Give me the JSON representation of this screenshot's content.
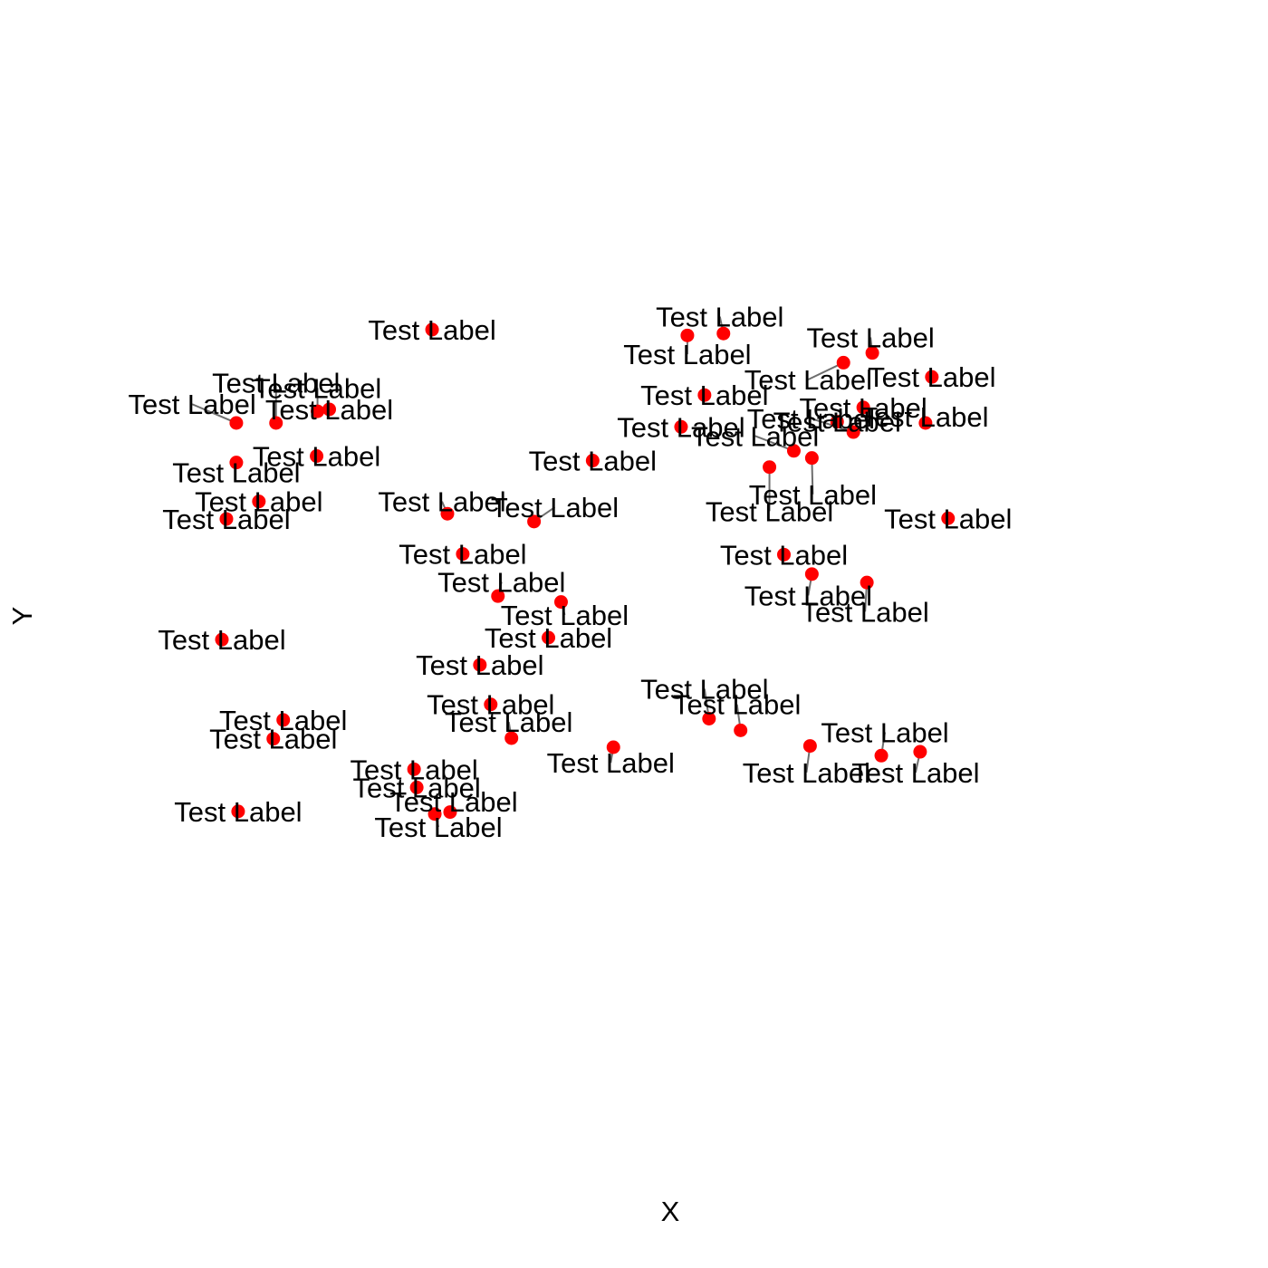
{
  "chart_data": {
    "type": "scatter",
    "xlabel": "X",
    "ylabel": "Y",
    "xlim": [
      0,
      1
    ],
    "ylim": [
      0,
      1
    ],
    "grid": false,
    "legend": "none",
    "colors": {
      "point": "#ff0000",
      "segment": "#6e6e6e",
      "text": "#000000"
    },
    "points": [
      {
        "x": 0.236,
        "y": 0.894,
        "label": "Test Label",
        "lx": 0.236,
        "ly": 0.894
      },
      {
        "x": 0.519,
        "y": 0.885,
        "label": "Test Label",
        "lx": 0.519,
        "ly": 0.856
      },
      {
        "x": 0.559,
        "y": 0.888,
        "label": "Test Label",
        "lx": 0.555,
        "ly": 0.914
      },
      {
        "x": 0.724,
        "y": 0.858,
        "label": "Test Label",
        "lx": 0.722,
        "ly": 0.882
      },
      {
        "x": 0.692,
        "y": 0.843,
        "label": "Test Label",
        "lx": 0.653,
        "ly": 0.817
      },
      {
        "x": 0.79,
        "y": 0.821,
        "label": "Test Label",
        "lx": 0.79,
        "ly": 0.821
      },
      {
        "x": 0.538,
        "y": 0.793,
        "label": "Test Label",
        "lx": 0.538,
        "ly": 0.793
      },
      {
        "x": 0.714,
        "y": 0.774,
        "label": "Test Label",
        "lx": 0.714,
        "ly": 0.774
      },
      {
        "x": 0.685,
        "y": 0.752,
        "label": "Test Label",
        "lx": 0.685,
        "ly": 0.752
      },
      {
        "x": 0.512,
        "y": 0.744,
        "label": "Test Label",
        "lx": 0.512,
        "ly": 0.744
      },
      {
        "x": 0.122,
        "y": 0.771,
        "label": "Test Label",
        "lx": 0.122,
        "ly": 0.771
      },
      {
        "x": 0.109,
        "y": 0.768,
        "label": "Test Label",
        "lx": 0.109,
        "ly": 0.804
      },
      {
        "x": 0.063,
        "y": 0.75,
        "label": "Test Label",
        "lx": 0.063,
        "ly": 0.812
      },
      {
        "x": 0.019,
        "y": 0.75,
        "label": "Test Label",
        "lx": -0.03,
        "ly": 0.779
      },
      {
        "x": 0.703,
        "y": 0.736,
        "label": "Test Label",
        "lx": 0.656,
        "ly": 0.757
      },
      {
        "x": 0.783,
        "y": 0.75,
        "label": "Test Label",
        "lx": 0.782,
        "ly": 0.76
      },
      {
        "x": 0.637,
        "y": 0.707,
        "label": "Test Label",
        "lx": 0.594,
        "ly": 0.73
      },
      {
        "x": 0.108,
        "y": 0.699,
        "label": "Test Label",
        "lx": 0.108,
        "ly": 0.699
      },
      {
        "x": 0.019,
        "y": 0.689,
        "label": "Test Label",
        "lx": 0.019,
        "ly": 0.674
      },
      {
        "x": 0.414,
        "y": 0.692,
        "label": "Test Label",
        "lx": 0.414,
        "ly": 0.692
      },
      {
        "x": 0.657,
        "y": 0.696,
        "label": "Test Label",
        "lx": 0.658,
        "ly": 0.64
      },
      {
        "x": 0.61,
        "y": 0.682,
        "label": "Test Label",
        "lx": 0.61,
        "ly": 0.614
      },
      {
        "x": 0.044,
        "y": 0.629,
        "label": "Test Label",
        "lx": 0.044,
        "ly": 0.629
      },
      {
        "x": 0.008,
        "y": 0.602,
        "label": "Test Label",
        "lx": 0.008,
        "ly": 0.602
      },
      {
        "x": 0.253,
        "y": 0.61,
        "label": "Test Label",
        "lx": 0.247,
        "ly": 0.629
      },
      {
        "x": 0.349,
        "y": 0.598,
        "label": "Test Label",
        "lx": 0.372,
        "ly": 0.62
      },
      {
        "x": 0.27,
        "y": 0.548,
        "label": "Test Label",
        "lx": 0.27,
        "ly": 0.548
      },
      {
        "x": 0.808,
        "y": 0.603,
        "label": "Test Label",
        "lx": 0.808,
        "ly": 0.603
      },
      {
        "x": 0.626,
        "y": 0.547,
        "label": "Test Label",
        "lx": 0.626,
        "ly": 0.547
      },
      {
        "x": 0.657,
        "y": 0.517,
        "label": "Test Label",
        "lx": 0.653,
        "ly": 0.484
      },
      {
        "x": 0.718,
        "y": 0.504,
        "label": "Test Label",
        "lx": 0.716,
        "ly": 0.459
      },
      {
        "x": 0.309,
        "y": 0.483,
        "label": "Test Label",
        "lx": 0.313,
        "ly": 0.505
      },
      {
        "x": 0.379,
        "y": 0.474,
        "label": "Test Label",
        "lx": 0.383,
        "ly": 0.454
      },
      {
        "x": 0.365,
        "y": 0.419,
        "label": "Test Label",
        "lx": 0.365,
        "ly": 0.419
      },
      {
        "x": 0.003,
        "y": 0.416,
        "label": "Test Label",
        "lx": 0.003,
        "ly": 0.416
      },
      {
        "x": 0.289,
        "y": 0.377,
        "label": "Test Label",
        "lx": 0.289,
        "ly": 0.377
      },
      {
        "x": 0.301,
        "y": 0.316,
        "label": "Test Label",
        "lx": 0.301,
        "ly": 0.316
      },
      {
        "x": 0.324,
        "y": 0.264,
        "label": "Test Label",
        "lx": 0.321,
        "ly": 0.289
      },
      {
        "x": 0.543,
        "y": 0.294,
        "label": "Test Label",
        "lx": 0.538,
        "ly": 0.34
      },
      {
        "x": 0.578,
        "y": 0.276,
        "label": "Test Label",
        "lx": 0.574,
        "ly": 0.316
      },
      {
        "x": 0.071,
        "y": 0.292,
        "label": "Test Label",
        "lx": 0.071,
        "ly": 0.292
      },
      {
        "x": 0.06,
        "y": 0.263,
        "label": "Test Label",
        "lx": 0.06,
        "ly": 0.263
      },
      {
        "x": 0.437,
        "y": 0.25,
        "label": "Test Label",
        "lx": 0.434,
        "ly": 0.226
      },
      {
        "x": 0.655,
        "y": 0.252,
        "label": "Test Label",
        "lx": 0.651,
        "ly": 0.211
      },
      {
        "x": 0.734,
        "y": 0.237,
        "label": "Test Label",
        "lx": 0.738,
        "ly": 0.273
      },
      {
        "x": 0.777,
        "y": 0.243,
        "label": "Test Label",
        "lx": 0.772,
        "ly": 0.211
      },
      {
        "x": 0.216,
        "y": 0.216,
        "label": "Test Label",
        "lx": 0.216,
        "ly": 0.216
      },
      {
        "x": 0.219,
        "y": 0.188,
        "label": "Test Label",
        "lx": 0.219,
        "ly": 0.188
      },
      {
        "x": 0.256,
        "y": 0.15,
        "label": "Test Label",
        "lx": 0.26,
        "ly": 0.166
      },
      {
        "x": 0.239,
        "y": 0.147,
        "label": "Test Label",
        "lx": 0.243,
        "ly": 0.127
      },
      {
        "x": 0.021,
        "y": 0.151,
        "label": "Test Label",
        "lx": 0.021,
        "ly": 0.151
      }
    ]
  }
}
